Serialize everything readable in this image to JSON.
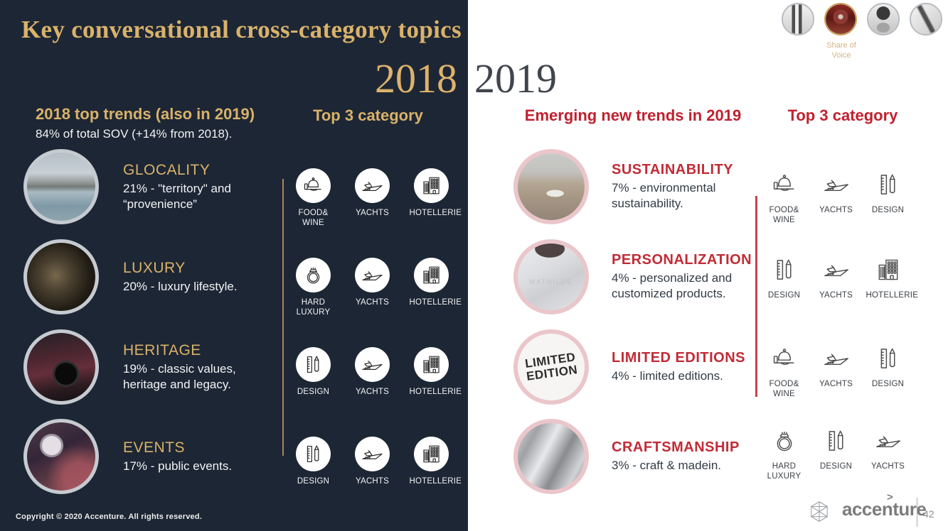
{
  "colors": {
    "dark_bg": "#1d2634",
    "gold": "#d9b26a",
    "red": "#c0212f",
    "pink_circle_border": "#eac6ca",
    "gray_circle_border": "#c6cbd1"
  },
  "slide": {
    "title": "Key conversational cross-category topics",
    "year_2018": "2018",
    "year_2019": "2019",
    "copyright": "Copyright © 2020 Accenture. All rights reserved.",
    "brand_name": "accenture",
    "brand_accent": ">",
    "page_number": "42"
  },
  "share_of_voice": {
    "label": "Share of Voice"
  },
  "left_panel": {
    "trends_header": "2018 top trends (also in 2019)",
    "trends_subheader": "84% of total SOV (+14% from 2018).",
    "top3_header": "Top 3 category",
    "trends": [
      {
        "title": "GLOCALITY",
        "desc": "21% - \"territory\" and “provenience”"
      },
      {
        "title": "LUXURY",
        "desc": "20% - luxury lifestyle."
      },
      {
        "title": "HERITAGE",
        "desc": "19% - classic values, heritage and legacy."
      },
      {
        "title": "EVENTS",
        "desc": "17% - public events."
      }
    ],
    "top3_rows": [
      {
        "items": [
          {
            "label": "FOOD& WINE",
            "icon": "icon-foodwine"
          },
          {
            "label": "YACHTS",
            "icon": "icon-yachts"
          },
          {
            "label": "HOTELLERIE",
            "icon": "icon-hotellerie"
          }
        ]
      },
      {
        "items": [
          {
            "label": "HARD LUXURY",
            "icon": "icon-hardluxury"
          },
          {
            "label": "YACHTS",
            "icon": "icon-yachts"
          },
          {
            "label": "HOTELLERIE",
            "icon": "icon-hotellerie"
          }
        ]
      },
      {
        "items": [
          {
            "label": "DESIGN",
            "icon": "icon-design"
          },
          {
            "label": "YACHTS",
            "icon": "icon-yachts"
          },
          {
            "label": "HOTELLERIE",
            "icon": "icon-hotellerie"
          }
        ]
      },
      {
        "items": [
          {
            "label": "DESIGN",
            "icon": "icon-design"
          },
          {
            "label": "YACHTS",
            "icon": "icon-yachts"
          },
          {
            "label": "HOTELLERIE",
            "icon": "icon-hotellerie"
          }
        ]
      }
    ]
  },
  "right_panel": {
    "trends_header": "Emerging new trends in 2019",
    "top3_header": "Top 3 category",
    "trends": [
      {
        "title": "SUSTAINABILITY",
        "desc": "7% - environmental sustainability."
      },
      {
        "title": "PERSONALIZATION",
        "desc": "4% - personalized and customized products.",
        "photo_text": "MATHILDE"
      },
      {
        "title": "LIMITED EDITIONS",
        "desc": "4% - limited editions.",
        "photo_text": "LIMITED EDITION"
      },
      {
        "title": "CRAFTSMANSHIP",
        "desc": "3% - craft & madein."
      }
    ],
    "top3_rows": [
      {
        "items": [
          {
            "label": "FOOD& WINE",
            "icon": "icon-foodwine"
          },
          {
            "label": "YACHTS",
            "icon": "icon-yachts"
          },
          {
            "label": "DESIGN",
            "icon": "icon-design"
          }
        ]
      },
      {
        "items": [
          {
            "label": "DESIGN",
            "icon": "icon-design"
          },
          {
            "label": "YACHTS",
            "icon": "icon-yachts"
          },
          {
            "label": "HOTELLERIE",
            "icon": "icon-hotellerie"
          }
        ]
      },
      {
        "items": [
          {
            "label": "FOOD& WINE",
            "icon": "icon-foodwine"
          },
          {
            "label": "YACHTS",
            "icon": "icon-yachts"
          },
          {
            "label": "DESIGN",
            "icon": "icon-design"
          }
        ]
      },
      {
        "items": [
          {
            "label": "HARD LUXURY",
            "icon": "icon-hardluxury"
          },
          {
            "label": "DESIGN",
            "icon": "icon-design"
          },
          {
            "label": "YACHTS",
            "icon": "icon-yachts"
          }
        ]
      }
    ]
  }
}
